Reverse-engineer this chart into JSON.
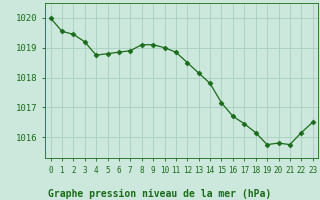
{
  "hours": [
    0,
    1,
    2,
    3,
    4,
    5,
    6,
    7,
    8,
    9,
    10,
    11,
    12,
    13,
    14,
    15,
    16,
    17,
    18,
    19,
    20,
    21,
    22,
    23
  ],
  "pressure": [
    1020.0,
    1019.55,
    1019.45,
    1019.2,
    1018.75,
    1018.8,
    1018.85,
    1018.9,
    1019.1,
    1019.1,
    1019.0,
    1018.85,
    1018.5,
    1018.15,
    1017.8,
    1017.15,
    1016.7,
    1016.45,
    1016.15,
    1015.75,
    1015.8,
    1015.75,
    1016.15,
    1016.5
  ],
  "line_color": "#1a6b1a",
  "marker": "D",
  "marker_size": 2.5,
  "bg_color": "#cce8dc",
  "grid_color": "#aacfbf",
  "title": "Graphe pression niveau de la mer (hPa)",
  "title_color": "#1a6b1a",
  "yticks": [
    1016,
    1017,
    1018,
    1019,
    1020
  ],
  "ylim": [
    1015.3,
    1020.5
  ],
  "xlim": [
    -0.5,
    23.5
  ],
  "xtick_labels": [
    "0",
    "1",
    "2",
    "3",
    "4",
    "5",
    "6",
    "7",
    "8",
    "9",
    "10",
    "11",
    "12",
    "13",
    "14",
    "15",
    "16",
    "17",
    "18",
    "19",
    "20",
    "21",
    "22",
    "23"
  ],
  "ytick_fontsize": 6.5,
  "xtick_fontsize": 5.5,
  "title_fontsize": 7.0,
  "linewidth": 0.9
}
